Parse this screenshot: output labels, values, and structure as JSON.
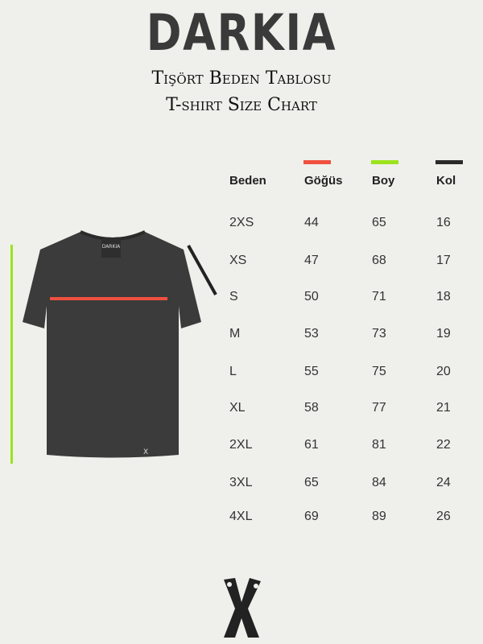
{
  "brand": "DARKIA",
  "subtitle_tr": "Tişört Beden Tablosu",
  "subtitle_en": "T-shirt Size Chart",
  "colors": {
    "gogus": "#f05040",
    "boy": "#9be31e",
    "kol": "#2a2a2a",
    "shirt": "#3b3b3b"
  },
  "shirt": {
    "label": "DARKIA"
  },
  "table": {
    "headers": [
      "Beden",
      "Göğüs",
      "Boy",
      "Kol"
    ],
    "rows": [
      [
        "2XS",
        "44",
        "65",
        "16"
      ],
      [
        "XS",
        "47",
        "68",
        "17"
      ],
      [
        "S",
        "50",
        "71",
        "18"
      ],
      [
        "M",
        "53",
        "73",
        "19"
      ],
      [
        "L",
        "55",
        "75",
        "20"
      ],
      [
        "XL",
        "58",
        "77",
        "21"
      ],
      [
        "2XL",
        "61",
        "81",
        "22"
      ],
      [
        "3XL",
        "65",
        "84",
        "24"
      ],
      [
        "4XL",
        "69",
        "89",
        "26"
      ]
    ]
  },
  "footer_logo": "X"
}
